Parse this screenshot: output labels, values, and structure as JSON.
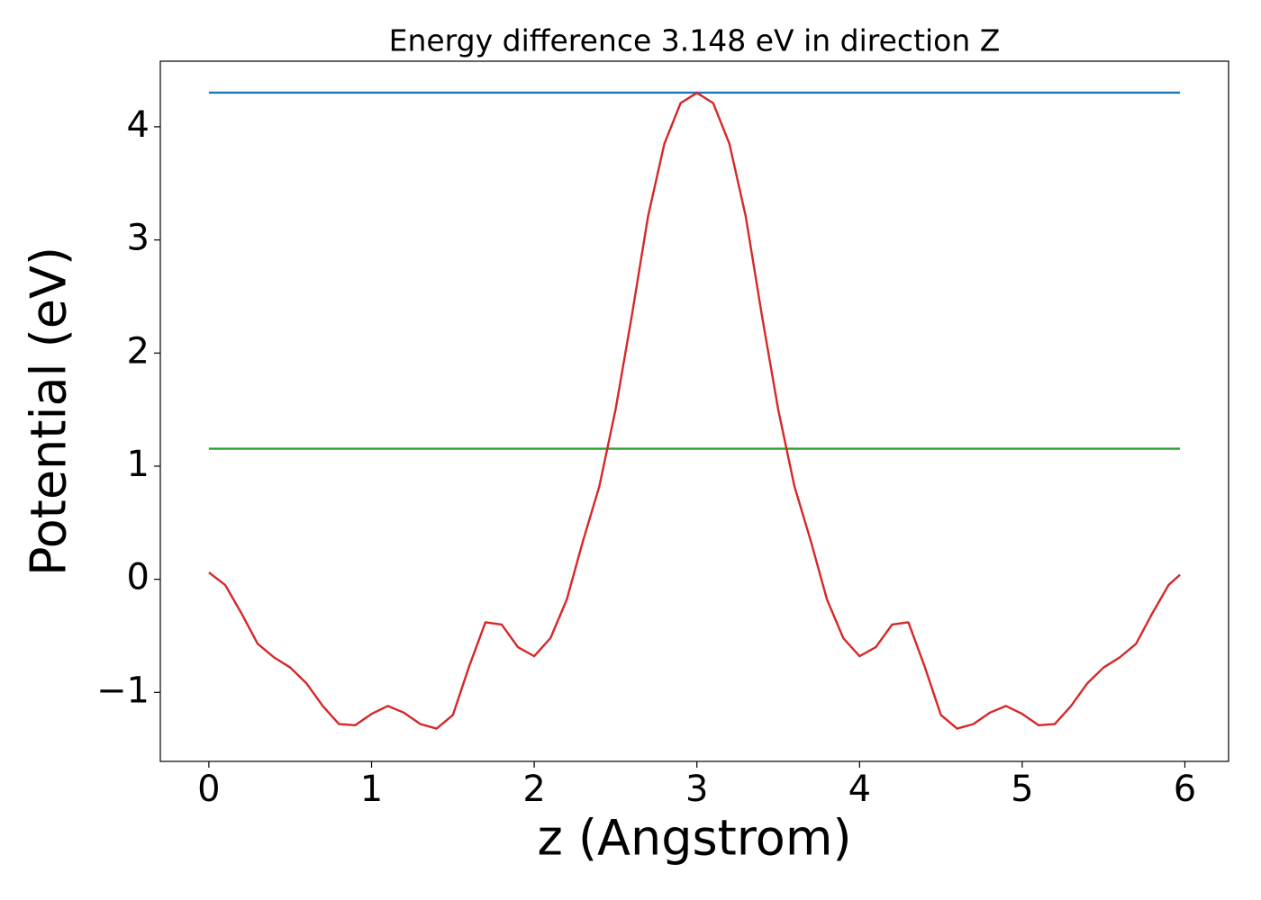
{
  "chart_data": {
    "type": "line",
    "title": "Energy difference 3.148 eV in direction Z",
    "xlabel": "z (Angstrom)",
    "ylabel": "Potential (eV)",
    "x": [
      0,
      0.1,
      0.2,
      0.3,
      0.4,
      0.5,
      0.6,
      0.7,
      0.8,
      0.9,
      1.0,
      1.1,
      1.2,
      1.3,
      1.4,
      1.5,
      1.6,
      1.7,
      1.8,
      1.9,
      2.0,
      2.1,
      2.2,
      2.3,
      2.4,
      2.5,
      2.6,
      2.7,
      2.8,
      2.9,
      3.0,
      3.1,
      3.2,
      3.3,
      3.4,
      3.5,
      3.6,
      3.7,
      3.8,
      3.9,
      4.0,
      4.1,
      4.2,
      4.3,
      4.4,
      4.5,
      4.6,
      4.7,
      4.8,
      4.9,
      5.0,
      5.1,
      5.2,
      5.3,
      5.4,
      5.5,
      5.6,
      5.7,
      5.8,
      5.9,
      5.97
    ],
    "series": [
      {
        "color": "#d62728",
        "values": [
          0.06,
          -0.05,
          -0.3,
          -0.57,
          -0.69,
          -0.78,
          -0.92,
          -1.12,
          -1.28,
          -1.29,
          -1.19,
          -1.12,
          -1.18,
          -1.28,
          -1.32,
          -1.2,
          -0.77,
          -0.38,
          -0.4,
          -0.6,
          -0.68,
          -0.52,
          -0.18,
          0.34,
          0.82,
          1.5,
          2.33,
          3.21,
          3.85,
          4.21,
          4.3,
          4.21,
          3.85,
          3.21,
          2.33,
          1.5,
          0.82,
          0.34,
          -0.18,
          -0.52,
          -0.68,
          -0.6,
          -0.4,
          -0.38,
          -0.77,
          -1.2,
          -1.32,
          -1.28,
          -1.18,
          -1.12,
          -1.19,
          -1.29,
          -1.28,
          -1.12,
          -0.92,
          -0.78,
          -0.69,
          -0.57,
          -0.3,
          -0.05,
          0.04
        ]
      },
      {
        "color": "#1f77b4",
        "x": [
          0,
          5.97
        ],
        "values": [
          4.302,
          4.302
        ]
      },
      {
        "color": "#2ca02c",
        "x": [
          0,
          5.97
        ],
        "values": [
          1.154,
          1.154
        ]
      }
    ],
    "xlim": [
      -0.2985,
      6.2685
    ],
    "ylim": [
      -1.61,
      4.58
    ],
    "xticks": [
      0,
      1,
      2,
      3,
      4,
      5,
      6
    ],
    "yticks": [
      {
        "value": -1,
        "label": "−1"
      },
      0,
      1,
      2,
      3,
      4
    ]
  }
}
